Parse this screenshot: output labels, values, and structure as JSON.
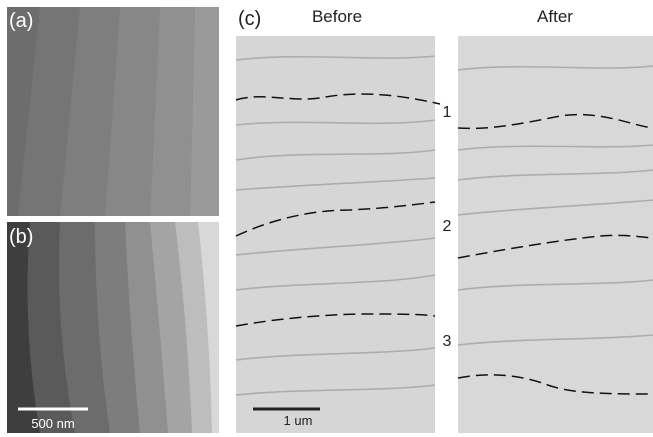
{
  "panels": {
    "a": {
      "label": "(a)"
    },
    "b": {
      "label": "(b)",
      "scale_bar": "500 nm"
    },
    "c": {
      "label": "(c)",
      "before": "Before",
      "after": "After",
      "markers": [
        "1",
        "2",
        "3"
      ],
      "scale_bar": "1 um"
    }
  }
}
